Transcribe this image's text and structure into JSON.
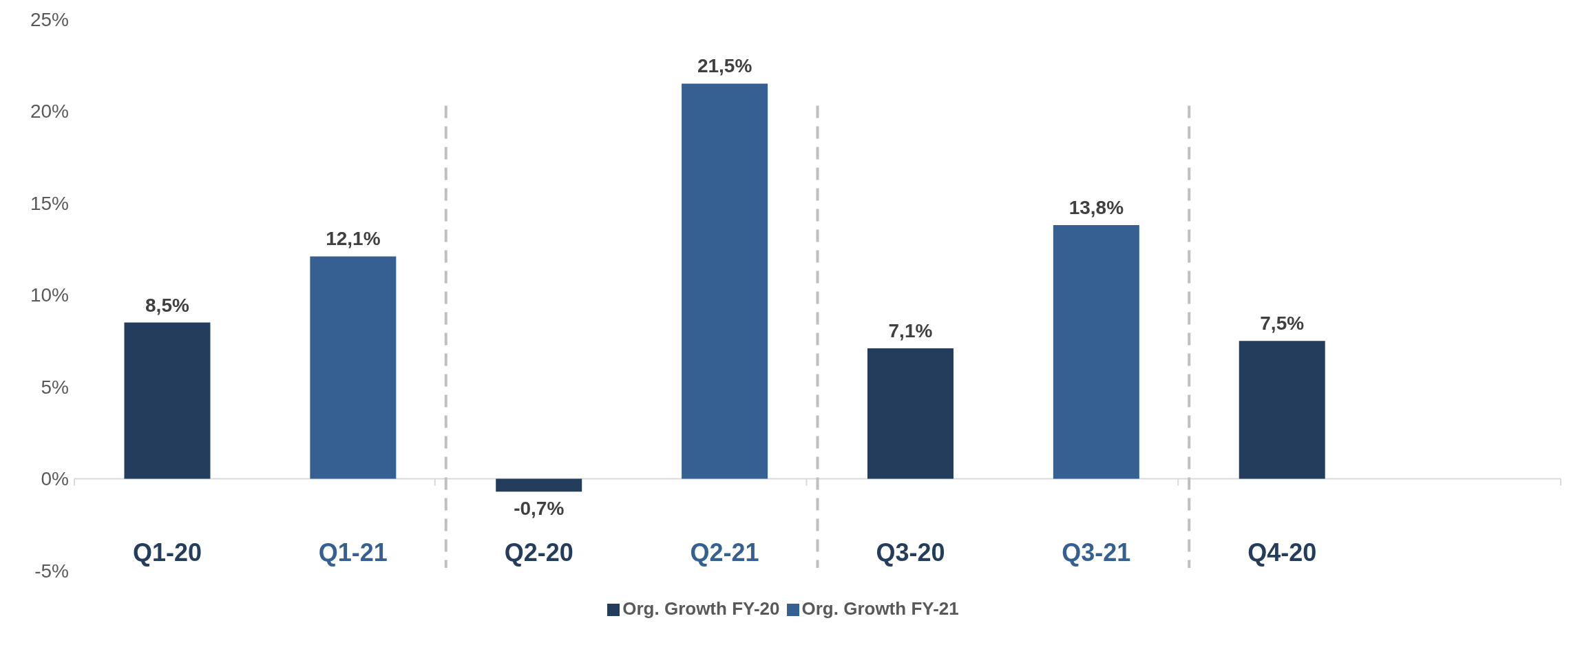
{
  "chart_data": {
    "type": "bar",
    "categories": [
      "Q1-20",
      "Q1-21",
      "Q2-20",
      "Q2-21",
      "Q3-20",
      "Q3-21",
      "Q4-20",
      null
    ],
    "series": [
      {
        "name": "Org. Growth FY-20",
        "color": "#243d5c",
        "values": [
          8.5,
          null,
          -0.7,
          null,
          7.1,
          null,
          7.5,
          null
        ],
        "value_labels": [
          "8,5%",
          null,
          "-0,7%",
          null,
          "7,1%",
          null,
          "7,5%",
          null
        ]
      },
      {
        "name": "Org. Growth FY-21",
        "color": "#366092",
        "values": [
          null,
          12.1,
          null,
          21.5,
          null,
          13.8,
          null,
          null
        ],
        "value_labels": [
          null,
          "12,1%",
          null,
          "21,5%",
          null,
          "13,8%",
          null,
          null
        ]
      }
    ],
    "ylim": [
      -5,
      25
    ],
    "yticks": [
      {
        "value": -5,
        "label": "-5%"
      },
      {
        "value": 0,
        "label": "0%"
      },
      {
        "value": 5,
        "label": "5%"
      },
      {
        "value": 10,
        "label": "10%"
      },
      {
        "value": 15,
        "label": "15%"
      },
      {
        "value": 20,
        "label": "20%"
      },
      {
        "value": 25,
        "label": "25%"
      }
    ],
    "grid": false,
    "legend": "bottom"
  }
}
